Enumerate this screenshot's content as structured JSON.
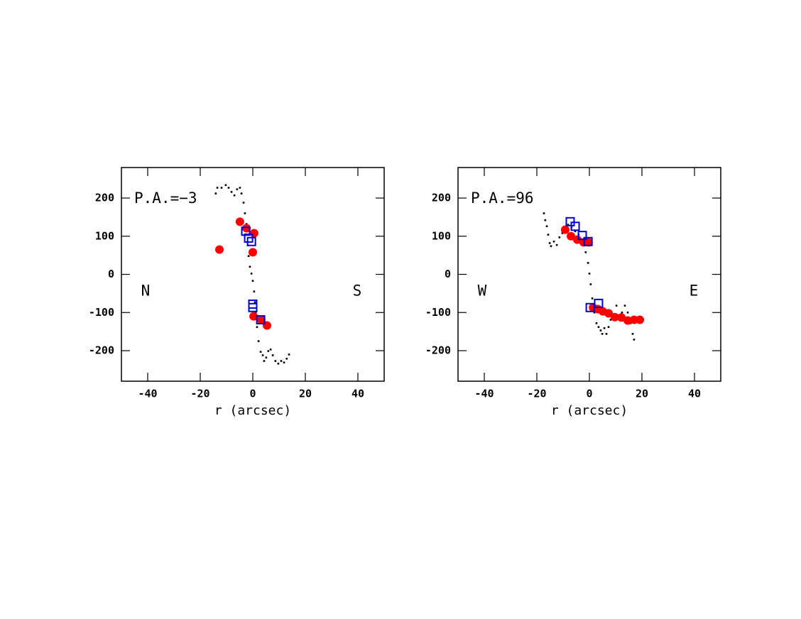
{
  "chart_data": [
    {
      "type": "scatter",
      "title": "P.A.=−3",
      "left_label": "N",
      "right_label": "S",
      "x_label": "r (arcsec)",
      "xlim": [
        -50,
        50
      ],
      "ylim": [
        -280,
        280
      ],
      "xticks": [
        -40,
        -20,
        0,
        20,
        40
      ],
      "yticks": [
        -200,
        -100,
        0,
        100,
        200
      ],
      "series": [
        {
          "marker": "dot",
          "color": "#000000",
          "x": [
            -14.1,
            -13.5,
            -11.9,
            -10.3,
            -9.2,
            -8.1,
            -7,
            -6,
            -4.9,
            -4.3,
            -3.5,
            -3,
            -2.4,
            -1.9,
            -1.6,
            -1.1,
            -0.5,
            0,
            0.5,
            0.8,
            1.1,
            1.6,
            2.2,
            3,
            3.8,
            4.3,
            5.1,
            5.9,
            6.8,
            7.6,
            8.6,
            9.7,
            10.8,
            11.9,
            12.9,
            13.8
          ],
          "values": [
            212,
            227,
            227,
            234,
            227,
            216,
            207,
            223,
            227,
            212,
            188,
            160,
            132,
            76,
            48,
            20,
            2,
            -17,
            -45,
            -73,
            -100,
            -138,
            -175,
            -203,
            -212,
            -227,
            -218,
            -201,
            -197,
            -212,
            -227,
            -234,
            -227,
            -231,
            -221,
            -210
          ]
        },
        {
          "marker": "circle",
          "color": "#ff0000",
          "x": [
            -12.7,
            -4.9,
            -2.4,
            0.5,
            0,
            0.3,
            3.2,
            5.4
          ],
          "values": [
            65,
            138,
            121,
            108,
            58,
            -110,
            -119,
            -134
          ]
        },
        {
          "marker": "square",
          "color": "#0000cc",
          "x": [
            -2.7,
            -1.6,
            -0.5,
            0,
            0,
            3
          ],
          "values": [
            113,
            95,
            86,
            -78,
            -87,
            -119
          ]
        }
      ]
    },
    {
      "type": "scatter",
      "title": "P.A.=96",
      "left_label": "W",
      "right_label": "E",
      "x_label": "r (arcsec)",
      "xlim": [
        -50,
        50
      ],
      "ylim": [
        -280,
        280
      ],
      "xticks": [
        -40,
        -20,
        0,
        20,
        40
      ],
      "yticks": [
        -200,
        -100,
        0,
        100,
        200
      ],
      "series": [
        {
          "marker": "dot",
          "color": "#000000",
          "x": [
            -17.3,
            -16.8,
            -16.2,
            -15.7,
            -15.1,
            -14.6,
            -13.5,
            -12.4,
            -11.4,
            -10.3,
            -9.2,
            -8.1,
            -6.8,
            -5.4,
            -4.1,
            -2.7,
            -1.4,
            -0.5,
            0,
            0.5,
            1.1,
            1.9,
            2.7,
            3.5,
            4.3,
            4.9,
            5.7,
            6.5,
            7.3,
            8.1,
            9.2,
            10.3,
            11.4,
            12.4,
            13.5,
            14.6,
            15.7,
            16.5,
            17
          ],
          "values": [
            160,
            142,
            126,
            104,
            82,
            74,
            86,
            77,
            97,
            108,
            123,
            130,
            123,
            113,
            104,
            86,
            58,
            30,
            2,
            -26,
            -63,
            -100,
            -128,
            -138,
            -147,
            -156,
            -141,
            -156,
            -138,
            -119,
            -110,
            -82,
            -119,
            -100,
            -82,
            -100,
            -128,
            -156,
            -171
          ]
        },
        {
          "marker": "circle",
          "color": "#ff0000",
          "x": [
            -9.2,
            -7,
            -4.6,
            -2.2,
            -0.3,
            1.4,
            3.2,
            5.1,
            7.3,
            9.7,
            12.2,
            14.6,
            17,
            19.2
          ],
          "values": [
            117,
            100,
            91,
            84,
            84,
            -87,
            -91,
            -97,
            -102,
            -112,
            -113,
            -121,
            -119,
            -119
          ]
        },
        {
          "marker": "square",
          "color": "#0000cc",
          "x": [
            -7.3,
            -5.4,
            -2.7,
            -0.5,
            0.3,
            3.5
          ],
          "values": [
            138,
            126,
            102,
            86,
            -87,
            -76
          ]
        }
      ]
    }
  ]
}
